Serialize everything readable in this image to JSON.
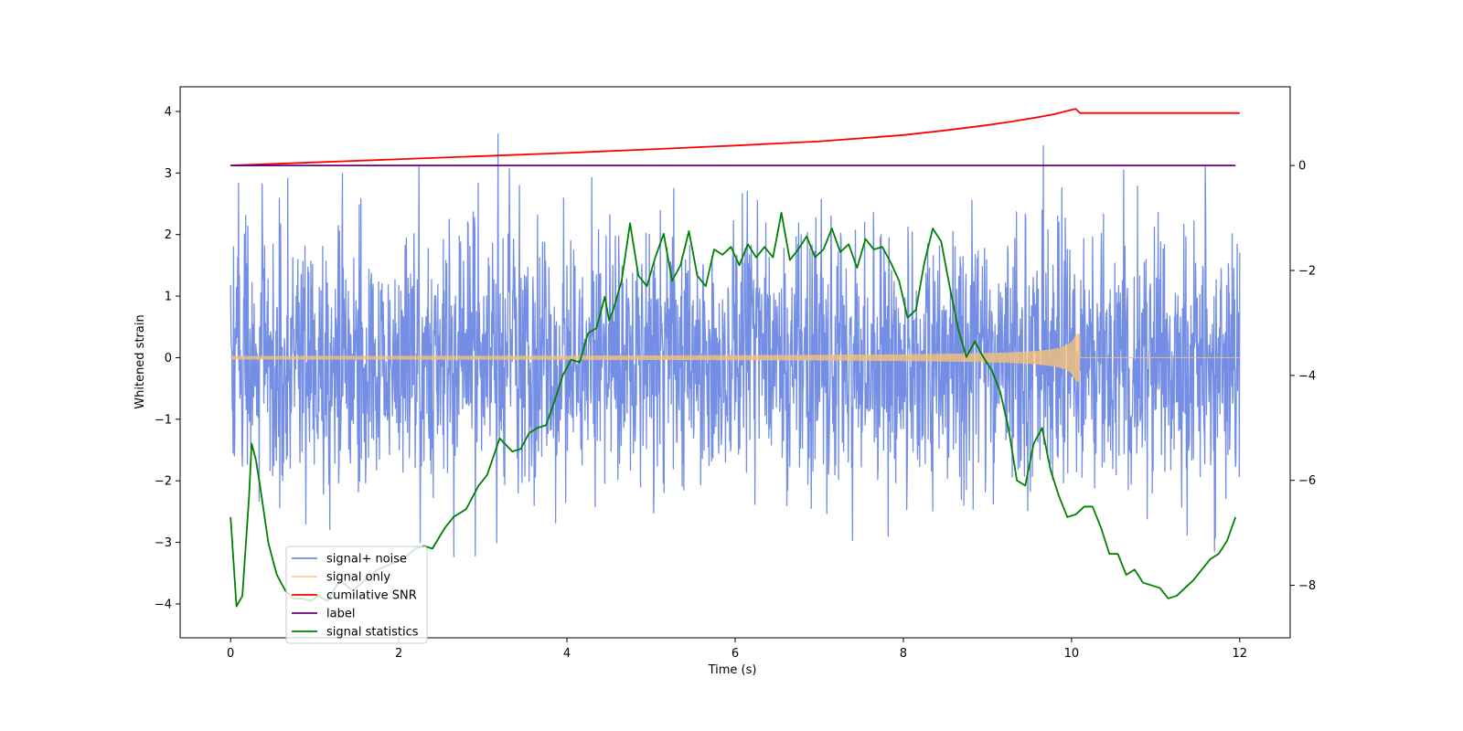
{
  "chart_data": {
    "type": "line",
    "title": "",
    "xlabel": "Time (s)",
    "ylabel": "Whitened strain",
    "ylabel_right": "",
    "xlim": [
      -0.6,
      12.6
    ],
    "ylim": [
      -4.55,
      4.4
    ],
    "ylim_right": [
      -9.0,
      1.5
    ],
    "x_ticks": [
      0,
      2,
      4,
      6,
      8,
      10,
      12
    ],
    "x_tick_labels": [
      "0",
      "2",
      "4",
      "6",
      "8",
      "10",
      "12"
    ],
    "y_ticks": [
      -4,
      -3,
      -2,
      -1,
      0,
      1,
      2,
      3,
      4
    ],
    "y_tick_labels": [
      "−4",
      "−3",
      "−2",
      "−1",
      "0",
      "1",
      "2",
      "3",
      "4"
    ],
    "y_right_ticks": [
      -8,
      -6,
      -4,
      -2,
      0
    ],
    "y_right_tick_labels": [
      "−8",
      "−6",
      "−4",
      "−2",
      "0"
    ],
    "grid": false,
    "legend_position": "lower-left",
    "series": [
      {
        "name": "signal+ noise",
        "color": "#6b88e3",
        "axis": "left",
        "kind": "noise",
        "x_range": [
          0,
          12
        ],
        "samples": 2400,
        "std": 1.05,
        "peak_min": -3.95,
        "peak_max": 4.0
      },
      {
        "name": "signal only",
        "color": "#f5c27a",
        "axis": "left",
        "kind": "chirp",
        "x_range": [
          0,
          12
        ],
        "merger_time": 10.1,
        "start_amplitude": 0.02,
        "peak_amplitude": 0.38
      },
      {
        "name": "cumilative SNR",
        "color": "#ff0000",
        "axis": "right",
        "x": [
          0,
          1,
          2,
          3,
          4,
          5,
          6,
          7,
          8,
          8.5,
          9,
          9.3,
          9.6,
          9.8,
          9.95,
          10.05,
          10.1,
          12
        ],
        "values": [
          0.0,
          0.06,
          0.12,
          0.18,
          0.24,
          0.31,
          0.38,
          0.46,
          0.58,
          0.67,
          0.77,
          0.84,
          0.92,
          0.98,
          1.04,
          1.08,
          1.0,
          1.0
        ]
      },
      {
        "name": "label",
        "color": "#6a0080",
        "axis": "right",
        "x": [
          0,
          11.95
        ],
        "values": [
          0,
          0
        ]
      },
      {
        "name": "signal statistics",
        "color": "#008000",
        "axis": "right",
        "x": [
          0,
          0.07,
          0.14,
          0.22,
          0.25,
          0.3,
          0.35,
          0.45,
          0.55,
          0.65,
          0.75,
          0.85,
          0.95,
          1.05,
          1.15,
          1.3,
          1.45,
          1.6,
          1.75,
          1.9,
          2.05,
          2.2,
          2.3,
          2.4,
          2.55,
          2.65,
          2.8,
          2.95,
          3.05,
          3.2,
          3.35,
          3.45,
          3.55,
          3.65,
          3.75,
          3.85,
          3.95,
          4.05,
          4.15,
          4.25,
          4.35,
          4.45,
          4.5,
          4.55,
          4.65,
          4.75,
          4.85,
          4.95,
          5.05,
          5.15,
          5.25,
          5.35,
          5.45,
          5.55,
          5.65,
          5.75,
          5.85,
          5.95,
          6.05,
          6.15,
          6.25,
          6.35,
          6.45,
          6.55,
          6.65,
          6.75,
          6.85,
          6.95,
          7.05,
          7.15,
          7.25,
          7.35,
          7.45,
          7.55,
          7.65,
          7.75,
          7.85,
          7.95,
          8.05,
          8.15,
          8.25,
          8.35,
          8.45,
          8.55,
          8.65,
          8.75,
          8.85,
          8.95,
          9.05,
          9.15,
          9.25,
          9.35,
          9.45,
          9.55,
          9.65,
          9.75,
          9.85,
          9.95,
          10.05,
          10.15,
          10.25,
          10.35,
          10.45,
          10.55,
          10.65,
          10.75,
          10.85,
          10.95,
          11.05,
          11.15,
          11.25,
          11.35,
          11.45,
          11.55,
          11.65,
          11.75,
          11.85,
          11.95
        ],
        "values": [
          -6.7,
          -8.4,
          -8.2,
          -6.3,
          -5.3,
          -5.6,
          -6.1,
          -7.2,
          -7.8,
          -8.1,
          -8.25,
          -8.25,
          -8.3,
          -8.2,
          -8.3,
          -7.9,
          -8.1,
          -7.9,
          -7.7,
          -7.6,
          -7.5,
          -7.3,
          -7.25,
          -7.3,
          -6.9,
          -6.7,
          -6.55,
          -6.1,
          -5.9,
          -5.2,
          -5.45,
          -5.4,
          -5.1,
          -5.0,
          -4.95,
          -4.5,
          -4.0,
          -3.7,
          -3.75,
          -3.2,
          -3.1,
          -2.5,
          -2.95,
          -2.75,
          -2.2,
          -1.1,
          -2.1,
          -2.3,
          -1.75,
          -1.3,
          -2.2,
          -1.9,
          -1.25,
          -2.1,
          -2.3,
          -1.6,
          -1.7,
          -1.55,
          -1.9,
          -1.5,
          -1.75,
          -1.55,
          -1.75,
          -0.9,
          -1.8,
          -1.6,
          -1.35,
          -1.75,
          -1.6,
          -1.2,
          -1.65,
          -1.5,
          -1.95,
          -1.4,
          -1.6,
          -1.55,
          -1.85,
          -2.2,
          -2.9,
          -2.75,
          -1.85,
          -1.2,
          -1.45,
          -2.3,
          -3.1,
          -3.65,
          -3.35,
          -3.65,
          -3.9,
          -4.3,
          -5.0,
          -6.0,
          -6.1,
          -5.3,
          -5.0,
          -5.8,
          -6.3,
          -6.7,
          -6.65,
          -6.5,
          -6.5,
          -6.9,
          -7.4,
          -7.4,
          -7.8,
          -7.7,
          -7.95,
          -8.0,
          -8.05,
          -8.25,
          -8.2,
          -8.05,
          -7.9,
          -7.7,
          -7.5,
          -7.4,
          -7.15,
          -6.7
        ]
      }
    ]
  }
}
